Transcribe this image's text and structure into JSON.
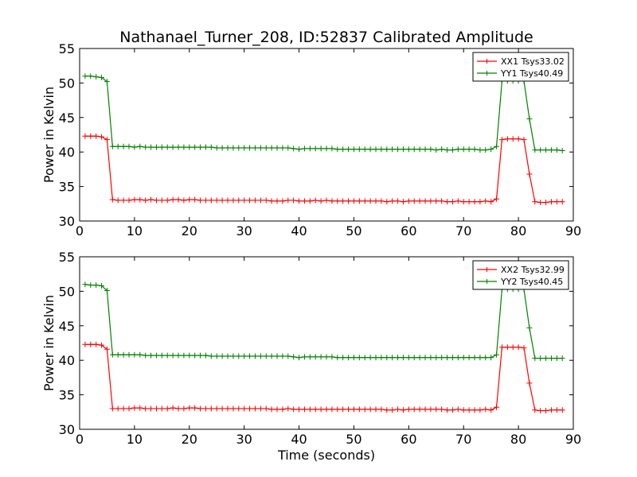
{
  "figure": {
    "title": "Nathanael_Turner_208, ID:52837 Calibrated Amplitude",
    "xlabel": "Time (seconds)"
  },
  "chart_data": [
    {
      "type": "line",
      "ylabel": "Power in Kelvin",
      "xlim": [
        0,
        90
      ],
      "ylim": [
        30,
        55
      ],
      "xticks": [
        "0",
        "10",
        "20",
        "30",
        "40",
        "50",
        "60",
        "70",
        "80",
        "90"
      ],
      "yticks": [
        "30",
        "35",
        "40",
        "45",
        "50",
        "55"
      ],
      "grid": false,
      "legend_position": "top-right",
      "x": [
        1,
        2,
        3,
        4,
        5,
        6,
        7,
        8,
        9,
        10,
        11,
        12,
        13,
        14,
        15,
        16,
        17,
        18,
        19,
        20,
        21,
        22,
        23,
        24,
        25,
        26,
        27,
        28,
        29,
        30,
        31,
        32,
        33,
        34,
        35,
        36,
        37,
        38,
        39,
        40,
        41,
        42,
        43,
        44,
        45,
        46,
        47,
        48,
        49,
        50,
        51,
        52,
        53,
        54,
        55,
        56,
        57,
        58,
        59,
        60,
        61,
        62,
        63,
        64,
        65,
        66,
        67,
        68,
        69,
        70,
        71,
        72,
        73,
        74,
        75,
        76,
        77,
        78,
        79,
        80,
        81,
        82,
        83,
        84,
        85,
        86,
        87,
        88
      ],
      "series": [
        {
          "name": "XX1 Tsys33.02",
          "color": "#ff0000",
          "values": [
            42.3,
            42.3,
            42.3,
            42.2,
            41.8,
            33.1,
            33.0,
            33.0,
            33.0,
            33.1,
            33.1,
            33.0,
            33.1,
            33.0,
            33.0,
            33.0,
            33.1,
            33.1,
            33.0,
            33.1,
            33.1,
            33.0,
            33.0,
            33.0,
            33.0,
            33.0,
            33.0,
            33.0,
            33.0,
            33.0,
            33.0,
            33.0,
            33.0,
            33.0,
            32.9,
            32.9,
            32.9,
            33.0,
            33.0,
            32.9,
            32.9,
            32.9,
            33.0,
            32.9,
            33.0,
            32.9,
            32.9,
            32.9,
            32.9,
            32.9,
            32.9,
            32.9,
            32.9,
            32.9,
            32.9,
            32.8,
            32.9,
            32.9,
            32.8,
            32.9,
            32.9,
            32.9,
            32.9,
            32.9,
            32.9,
            32.9,
            32.8,
            32.8,
            32.9,
            32.8,
            32.8,
            32.8,
            32.8,
            32.9,
            32.8,
            33.2,
            41.8,
            41.9,
            41.9,
            41.9,
            41.8,
            36.8,
            32.8,
            32.7,
            32.7,
            32.8,
            32.8,
            32.8
          ]
        },
        {
          "name": "YY1 Tsys40.49",
          "color": "#008000",
          "values": [
            51.0,
            51.0,
            50.9,
            50.8,
            50.2,
            40.8,
            40.8,
            40.8,
            40.8,
            40.7,
            40.8,
            40.7,
            40.7,
            40.7,
            40.7,
            40.7,
            40.7,
            40.7,
            40.7,
            40.7,
            40.7,
            40.7,
            40.7,
            40.7,
            40.6,
            40.6,
            40.6,
            40.6,
            40.6,
            40.6,
            40.6,
            40.6,
            40.6,
            40.6,
            40.6,
            40.6,
            40.6,
            40.6,
            40.5,
            40.4,
            40.5,
            40.5,
            40.5,
            40.5,
            40.5,
            40.5,
            40.4,
            40.4,
            40.4,
            40.4,
            40.4,
            40.4,
            40.4,
            40.4,
            40.4,
            40.4,
            40.4,
            40.4,
            40.4,
            40.4,
            40.4,
            40.4,
            40.4,
            40.4,
            40.3,
            40.4,
            40.3,
            40.3,
            40.4,
            40.4,
            40.4,
            40.4,
            40.3,
            40.3,
            40.4,
            40.8,
            50.3,
            50.3,
            50.3,
            50.3,
            50.3,
            44.8,
            40.3,
            40.3,
            40.3,
            40.3,
            40.3,
            40.2
          ]
        }
      ]
    },
    {
      "type": "line",
      "ylabel": "Power in Kelvin",
      "xlim": [
        0,
        90
      ],
      "ylim": [
        30,
        55
      ],
      "xticks": [
        "0",
        "10",
        "20",
        "30",
        "40",
        "50",
        "60",
        "70",
        "80",
        "90"
      ],
      "yticks": [
        "30",
        "35",
        "40",
        "45",
        "50",
        "55"
      ],
      "grid": false,
      "legend_position": "top-right",
      "x": [
        1,
        2,
        3,
        4,
        5,
        6,
        7,
        8,
        9,
        10,
        11,
        12,
        13,
        14,
        15,
        16,
        17,
        18,
        19,
        20,
        21,
        22,
        23,
        24,
        25,
        26,
        27,
        28,
        29,
        30,
        31,
        32,
        33,
        34,
        35,
        36,
        37,
        38,
        39,
        40,
        41,
        42,
        43,
        44,
        45,
        46,
        47,
        48,
        49,
        50,
        51,
        52,
        53,
        54,
        55,
        56,
        57,
        58,
        59,
        60,
        61,
        62,
        63,
        64,
        65,
        66,
        67,
        68,
        69,
        70,
        71,
        72,
        73,
        74,
        75,
        76,
        77,
        78,
        79,
        80,
        81,
        82,
        83,
        84,
        85,
        86,
        87,
        88
      ],
      "series": [
        {
          "name": "XX2 Tsys32.99",
          "color": "#ff0000",
          "values": [
            42.3,
            42.3,
            42.3,
            42.2,
            41.6,
            33.0,
            33.0,
            33.0,
            33.0,
            33.1,
            33.1,
            33.0,
            33.0,
            33.0,
            33.0,
            33.0,
            33.1,
            33.0,
            33.0,
            33.1,
            33.1,
            33.0,
            33.0,
            33.0,
            33.0,
            33.0,
            33.0,
            33.0,
            33.0,
            33.0,
            33.0,
            33.0,
            33.0,
            33.0,
            32.9,
            32.9,
            32.9,
            33.0,
            32.9,
            32.9,
            32.9,
            32.9,
            32.9,
            32.9,
            32.9,
            32.9,
            32.9,
            32.9,
            32.9,
            32.9,
            32.9,
            32.9,
            32.9,
            32.9,
            32.9,
            32.8,
            32.8,
            32.9,
            32.8,
            32.9,
            32.9,
            32.9,
            32.9,
            32.9,
            32.9,
            32.9,
            32.8,
            32.8,
            32.9,
            32.8,
            32.8,
            32.8,
            32.8,
            32.9,
            32.8,
            33.2,
            41.9,
            41.9,
            41.9,
            41.9,
            41.8,
            36.7,
            32.8,
            32.7,
            32.7,
            32.8,
            32.8,
            32.8
          ]
        },
        {
          "name": "YY2 Tsys40.45",
          "color": "#008000",
          "values": [
            51.0,
            50.9,
            50.9,
            50.8,
            50.1,
            40.8,
            40.8,
            40.8,
            40.8,
            40.8,
            40.8,
            40.7,
            40.7,
            40.7,
            40.7,
            40.7,
            40.7,
            40.7,
            40.7,
            40.7,
            40.7,
            40.7,
            40.7,
            40.6,
            40.6,
            40.6,
            40.6,
            40.6,
            40.6,
            40.6,
            40.6,
            40.6,
            40.6,
            40.6,
            40.6,
            40.6,
            40.6,
            40.6,
            40.5,
            40.4,
            40.5,
            40.5,
            40.5,
            40.5,
            40.5,
            40.5,
            40.4,
            40.4,
            40.4,
            40.4,
            40.4,
            40.4,
            40.4,
            40.4,
            40.4,
            40.4,
            40.4,
            40.4,
            40.4,
            40.4,
            40.4,
            40.4,
            40.4,
            40.4,
            40.4,
            40.4,
            40.4,
            40.4,
            40.4,
            40.4,
            40.4,
            40.4,
            40.4,
            40.4,
            40.4,
            40.8,
            50.3,
            50.3,
            50.3,
            50.3,
            50.3,
            44.7,
            40.3,
            40.3,
            40.3,
            40.3,
            40.3,
            40.3
          ]
        }
      ]
    }
  ]
}
